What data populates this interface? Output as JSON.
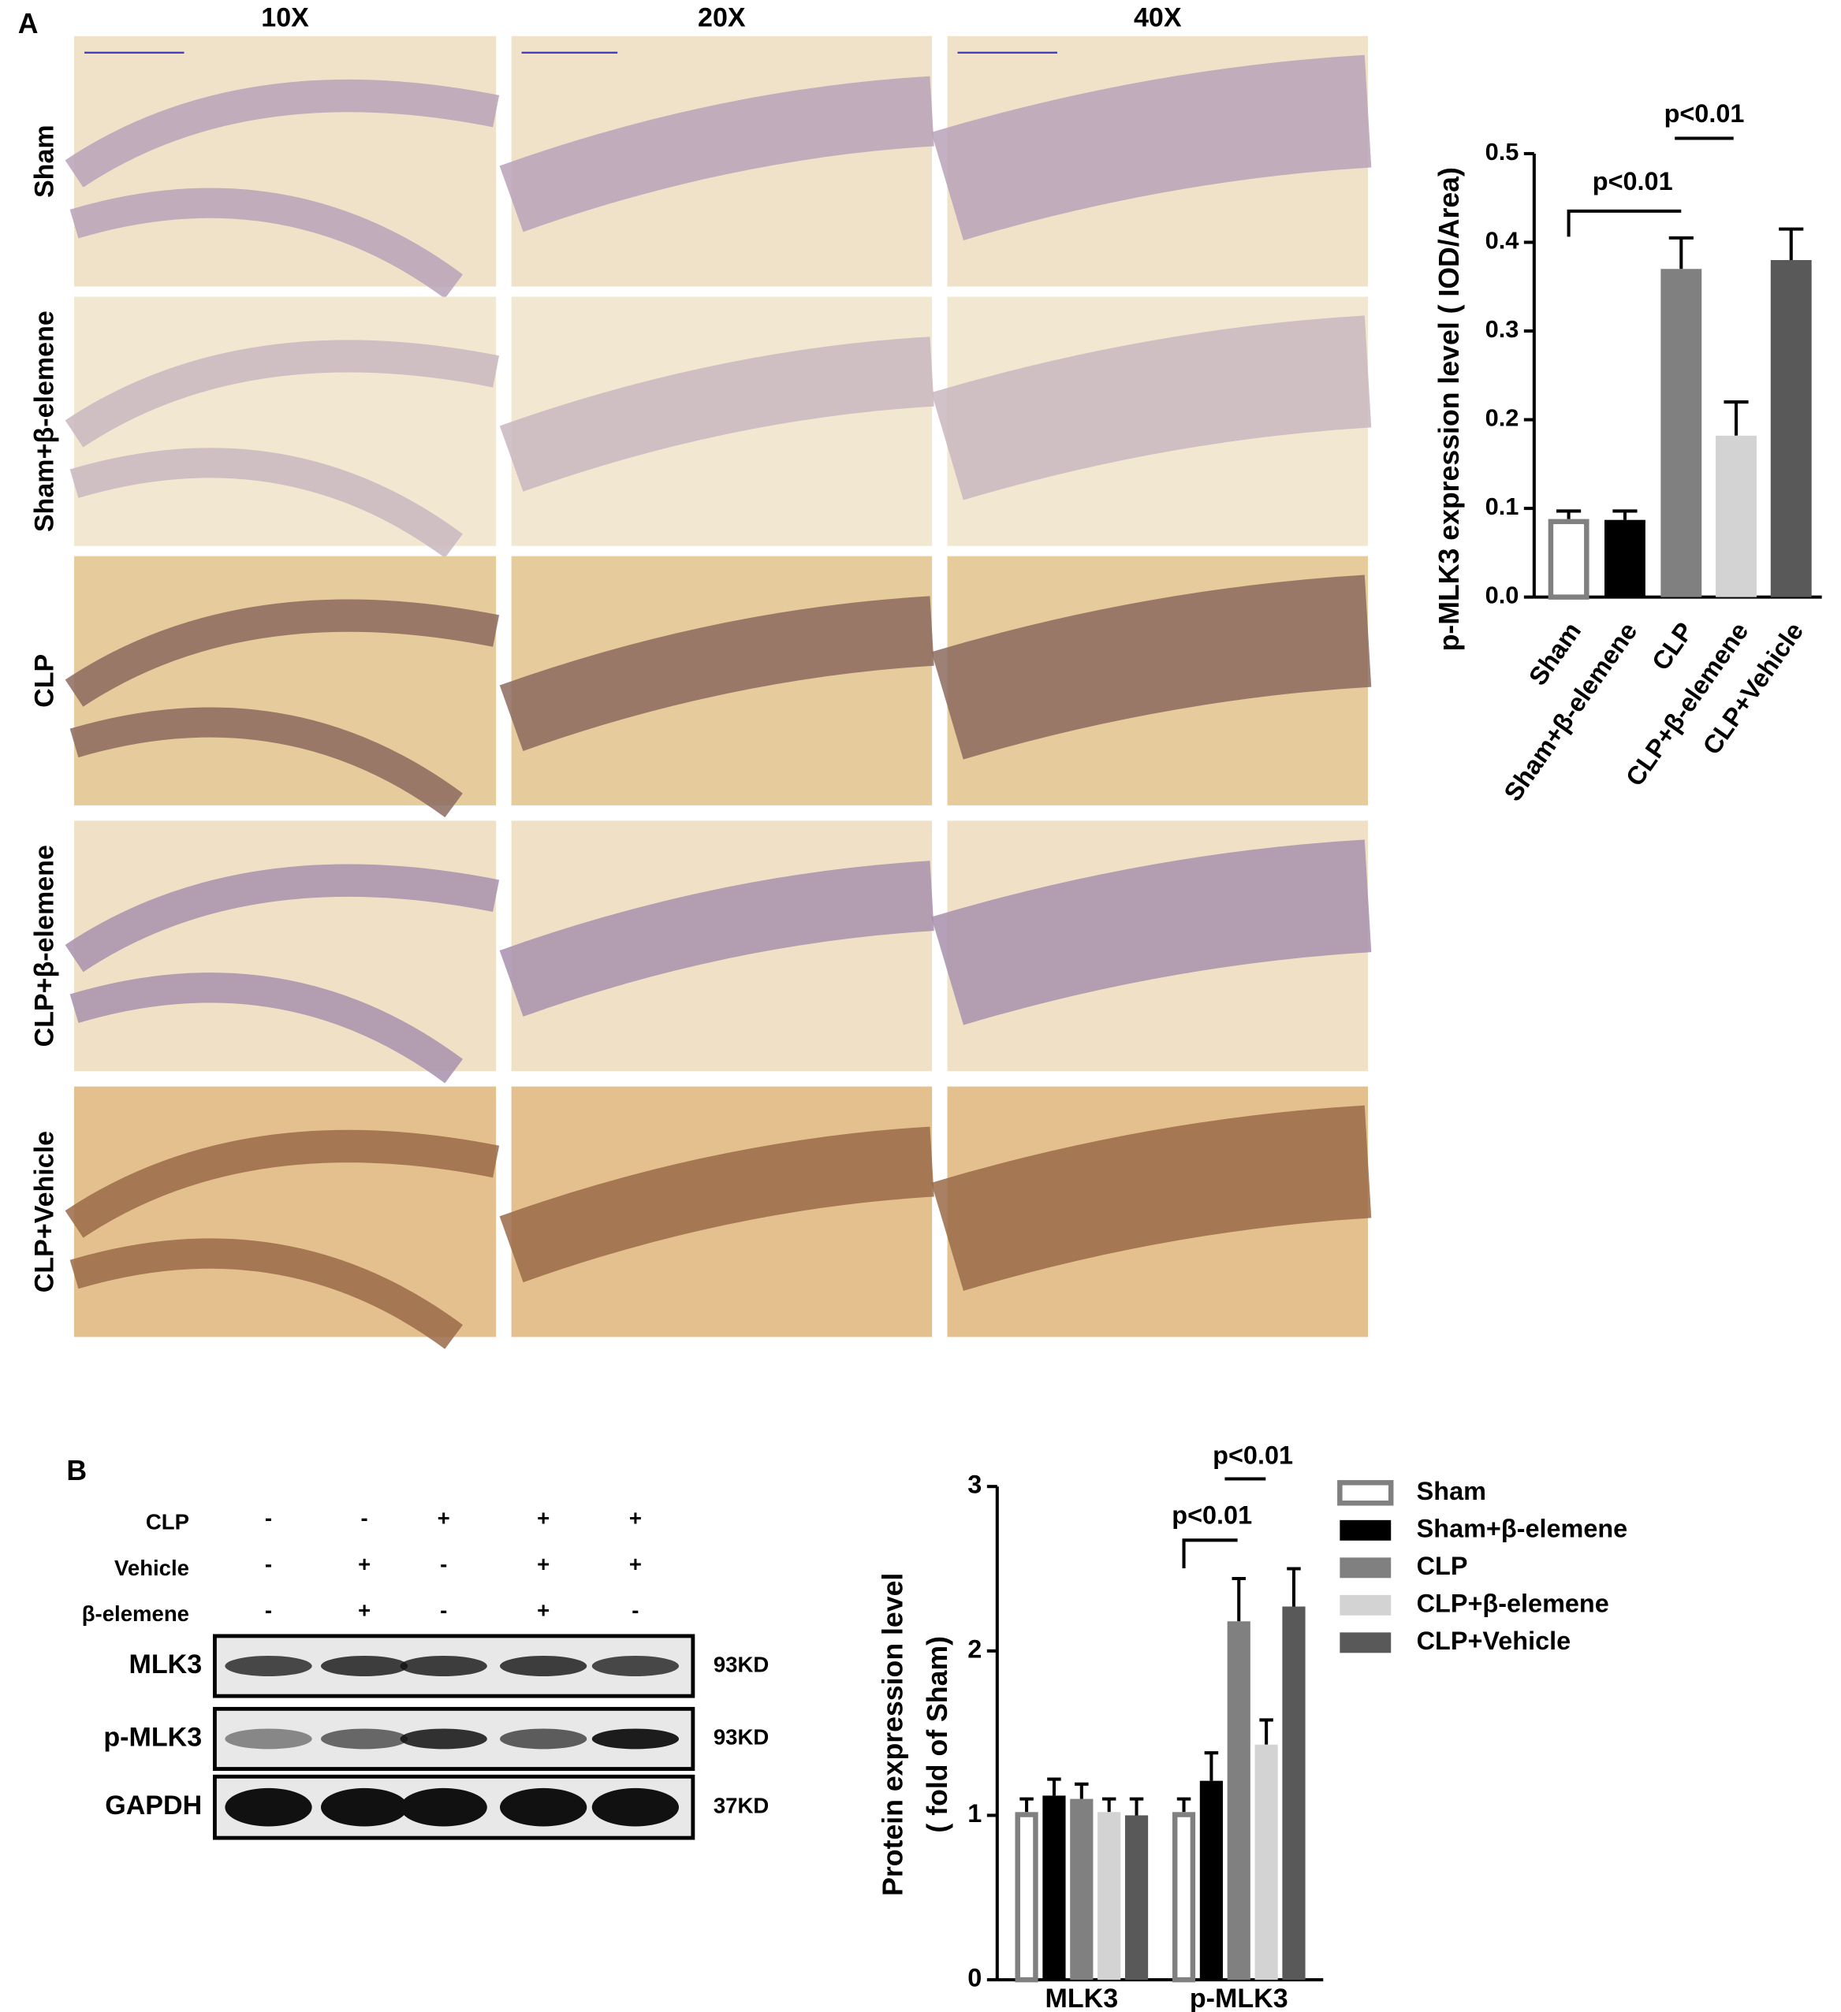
{
  "panel_labels": [
    "A",
    "B"
  ],
  "micrographs": {
    "magnifications": [
      "10X",
      "20X",
      "40X"
    ],
    "groups": [
      "Sham",
      "Sham+β-elemene",
      "CLP",
      "CLP+β-elemene",
      "CLP+Vehicle"
    ]
  },
  "blot": {
    "treatments": [
      {
        "name": "CLP",
        "lanes": [
          "-",
          "-",
          "+",
          "+",
          "+"
        ]
      },
      {
        "name": "Vehicle",
        "lanes": [
          "-",
          "+",
          "-",
          "+",
          "+"
        ]
      },
      {
        "name": "β-elemene",
        "lanes": [
          "-",
          "+",
          "-",
          "+",
          "-"
        ]
      }
    ],
    "rows": [
      {
        "name": "MLK3",
        "size": "93KD"
      },
      {
        "name": "p-MLK3",
        "size": "93KD"
      },
      {
        "name": "GAPDH",
        "size": "37KD"
      }
    ]
  },
  "chart_data": [
    {
      "type": "bar",
      "ylabel": "p-MLK3 expression level ( IOD/Area)",
      "categories": [
        "Sham",
        "Sham+β-elemene",
        "CLP",
        "CLP+β-elemene",
        "CLP+Vehicle"
      ],
      "values": [
        0.088,
        0.087,
        0.37,
        0.182,
        0.38
      ],
      "errors": [
        0.009,
        0.01,
        0.035,
        0.038,
        0.035
      ],
      "colors": [
        "#ffffff",
        "#000000",
        "#808080",
        "#d3d3d3",
        "#595959"
      ],
      "edgecolor": "#808080",
      "ylim": [
        0,
        0.5
      ],
      "yticks": [
        {
          "value": 0,
          "label": "0.0"
        },
        0.1,
        0.2,
        0.3,
        0.4,
        0.5
      ],
      "annotations": [
        "p<0.01",
        "p<0.01"
      ]
    },
    {
      "type": "grouped_bar",
      "ylabel": [
        "Protein expression level",
        "( fold of Sham)"
      ],
      "categories": [
        "MLK3",
        "p-MLK3"
      ],
      "series": [
        {
          "name": "Sham",
          "color": "#ffffff",
          "edgecolor": "#808080",
          "values": [
            1.02,
            1.02
          ],
          "errors": [
            0.08,
            0.08
          ]
        },
        {
          "name": "Sham+β-elemene",
          "color": "#000000",
          "values": [
            1.12,
            1.21
          ],
          "errors": [
            0.1,
            0.17
          ]
        },
        {
          "name": "CLP",
          "color": "#808080",
          "values": [
            1.1,
            2.18
          ],
          "errors": [
            0.09,
            0.26
          ]
        },
        {
          "name": "CLP+β-elemene",
          "color": "#d3d3d3",
          "values": [
            1.02,
            1.43
          ],
          "errors": [
            0.08,
            0.15
          ]
        },
        {
          "name": "CLP+Vehicle",
          "color": "#595959",
          "values": [
            1.0,
            2.27
          ],
          "errors": [
            0.1,
            0.23
          ]
        }
      ],
      "ylim": [
        0,
        3
      ],
      "yticks": [
        0,
        1,
        2,
        3
      ],
      "annotations": [
        "p<0.01",
        "p<0.01"
      ]
    }
  ]
}
